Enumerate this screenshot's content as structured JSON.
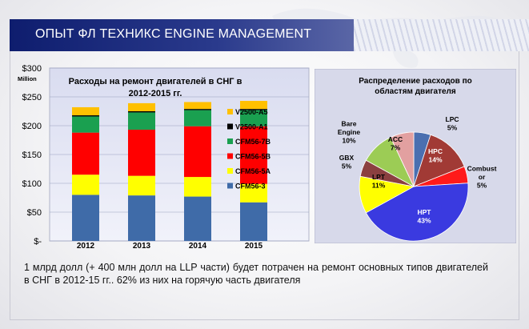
{
  "header": {
    "title": "ОПЫТ ФЛ ТЕХНИКС ENGINE MANAGEMENT"
  },
  "caption": {
    "text": "1 млрд долл (+ 400 млн долл на LLP части) будет потрачен на ремонт основных типов двигателей в СНГ в 2012-15 гг.. 62% из них на горячую часть двигателя"
  },
  "chart_data": [
    {
      "type": "bar",
      "stacked": true,
      "title": "Расходы на ремонт двигателей в СНГ в 2012-2015 гг.",
      "ylabel": "Million",
      "ylim": [
        0,
        300
      ],
      "yticks": [
        0,
        50,
        100,
        150,
        200,
        250,
        300
      ],
      "ytick_labels": [
        "$-",
        "$50",
        "$100",
        "$150",
        "$200",
        "$250",
        "$300"
      ],
      "categories": [
        "2012",
        "2013",
        "2014",
        "2015"
      ],
      "grid": true,
      "legend_position": "right",
      "series": [
        {
          "name": "CFM56-3",
          "color": "#3f6ba8",
          "values": [
            80,
            79,
            77,
            67
          ]
        },
        {
          "name": "CFM56-5A",
          "color": "#ffff00",
          "values": [
            35,
            34,
            34,
            32
          ]
        },
        {
          "name": "CFM56-5B",
          "color": "#ff0000",
          "values": [
            73,
            80,
            88,
            100
          ]
        },
        {
          "name": "CFM56-7B",
          "color": "#1aa050",
          "values": [
            28,
            30,
            28,
            28
          ]
        },
        {
          "name": "V2500-A1",
          "color": "#000000",
          "values": [
            2,
            2,
            2,
            2
          ]
        },
        {
          "name": "V2500-A5",
          "color": "#ffc000",
          "values": [
            14,
            14,
            12,
            14
          ]
        }
      ]
    },
    {
      "type": "pie",
      "title": "Распределение расходов по областям двигателя",
      "slices": [
        {
          "label": "LPC",
          "percent_label": "5%",
          "value": 5,
          "color": "#4a6fb0"
        },
        {
          "label": "HPC",
          "percent_label": "14%",
          "value": 14,
          "color": "#a13a35"
        },
        {
          "label": "Combustor",
          "percent_label": "5%",
          "value": 5,
          "color": "#ff1a1a"
        },
        {
          "label": "HPT",
          "percent_label": "43%",
          "value": 43,
          "color": "#3a3ae0"
        },
        {
          "label": "LPT",
          "percent_label": "11%",
          "value": 11,
          "color": "#ffff00"
        },
        {
          "label": "GBX",
          "percent_label": "5%",
          "value": 5,
          "color": "#8b4040"
        },
        {
          "label": "Bare Engine",
          "percent_label": "10%",
          "value": 10,
          "color": "#9ccc55"
        },
        {
          "label": "ACC",
          "percent_label": "7%",
          "value": 7,
          "color": "#e2a0a0"
        }
      ]
    }
  ]
}
